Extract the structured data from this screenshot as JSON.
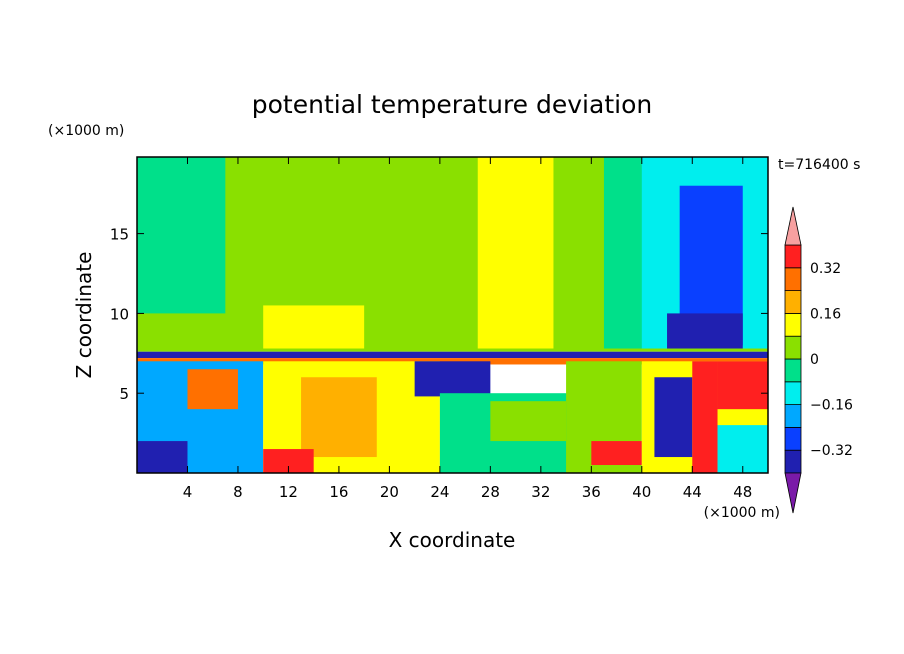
{
  "chart_data": {
    "type": "heatmap",
    "title": "potential temperature deviation",
    "xlabel": "X coordinate",
    "ylabel": "Z coordinate",
    "x_unit_label": "(×1000 m)",
    "y_unit_label": "(×1000 m)",
    "time_label": "t=716400 s",
    "xlim": [
      0,
      50
    ],
    "ylim": [
      0,
      19.8
    ],
    "x_ticks": [
      4,
      8,
      12,
      16,
      20,
      24,
      28,
      32,
      36,
      40,
      44,
      48
    ],
    "y_ticks": [
      5,
      10,
      15
    ],
    "colorbar": {
      "levels": [
        -0.4,
        -0.32,
        -0.24,
        -0.16,
        -0.08,
        0,
        0.08,
        0.16,
        0.24,
        0.32,
        0.4
      ],
      "colors": [
        "#7a1aa8",
        "#2020b0",
        "#0a40ff",
        "#00a8ff",
        "#00eeee",
        "#00e08a",
        "#8ae000",
        "#ffff00",
        "#ffb000",
        "#ff7000",
        "#ff2020",
        "#f7a0a0"
      ],
      "tick_labels": [
        "0.32",
        "0.16",
        "0",
        "−0.16",
        "−0.32"
      ],
      "tick_values": [
        0.32,
        0.16,
        0,
        -0.16,
        -0.32
      ]
    },
    "regions": [
      {
        "x": [
          0,
          50
        ],
        "z": [
          7.6,
          19.8
        ],
        "value": 0.04
      },
      {
        "x": [
          0,
          7
        ],
        "z": [
          10,
          19.8
        ],
        "value": -0.04
      },
      {
        "x": [
          8,
          13
        ],
        "z": [
          16,
          19.8
        ],
        "value": 0.04
      },
      {
        "x": [
          22,
          27
        ],
        "z": [
          7.8,
          19.8
        ],
        "value": 0.04
      },
      {
        "x": [
          27,
          33
        ],
        "z": [
          7.8,
          19.8
        ],
        "value": 0.12
      },
      {
        "x": [
          37,
          41
        ],
        "z": [
          7.8,
          19.8
        ],
        "value": -0.04
      },
      {
        "x": [
          40,
          50
        ],
        "z": [
          7.8,
          19.8
        ],
        "value": -0.12
      },
      {
        "x": [
          43,
          48
        ],
        "z": [
          8,
          18
        ],
        "value": -0.28
      },
      {
        "x": [
          42,
          48
        ],
        "z": [
          7.8,
          10
        ],
        "value": -0.36
      },
      {
        "x": [
          10,
          18
        ],
        "z": [
          7.8,
          10.5
        ],
        "value": 0.12
      },
      {
        "x": [
          0,
          50
        ],
        "z": [
          7.2,
          7.6
        ],
        "value": -0.36
      },
      {
        "x": [
          0,
          50
        ],
        "z": [
          6.8,
          7.2
        ],
        "value": 0.28
      },
      {
        "x": [
          0,
          10
        ],
        "z": [
          0,
          7
        ],
        "value": -0.2
      },
      {
        "x": [
          0,
          4
        ],
        "z": [
          0,
          2
        ],
        "value": -0.36
      },
      {
        "x": [
          4,
          8
        ],
        "z": [
          4,
          6.5
        ],
        "value": 0.28
      },
      {
        "x": [
          10,
          24
        ],
        "z": [
          0,
          7
        ],
        "value": 0.12
      },
      {
        "x": [
          13,
          19
        ],
        "z": [
          1,
          6
        ],
        "value": 0.2
      },
      {
        "x": [
          10,
          14
        ],
        "z": [
          0,
          1.5
        ],
        "value": 0.36
      },
      {
        "x": [
          22,
          28
        ],
        "z": [
          4.8,
          7
        ],
        "value": -0.36
      },
      {
        "x": [
          24,
          36
        ],
        "z": [
          0,
          5
        ],
        "value": -0.04
      },
      {
        "x": [
          28,
          34
        ],
        "z": [
          2,
          4.5
        ],
        "value": 0.04
      },
      {
        "x": [
          34,
          40
        ],
        "z": [
          0,
          7
        ],
        "value": 0.04
      },
      {
        "x": [
          36,
          40
        ],
        "z": [
          0.5,
          2
        ],
        "value": 0.36
      },
      {
        "x": [
          40,
          50
        ],
        "z": [
          0,
          7
        ],
        "value": 0.12
      },
      {
        "x": [
          41,
          44
        ],
        "z": [
          1,
          6
        ],
        "value": -0.36
      },
      {
        "x": [
          44,
          46
        ],
        "z": [
          0,
          7
        ],
        "value": 0.36
      },
      {
        "x": [
          46,
          50
        ],
        "z": [
          4,
          7
        ],
        "value": 0.36
      },
      {
        "x": [
          46,
          50
        ],
        "z": [
          0,
          3
        ],
        "value": -0.12
      }
    ]
  }
}
